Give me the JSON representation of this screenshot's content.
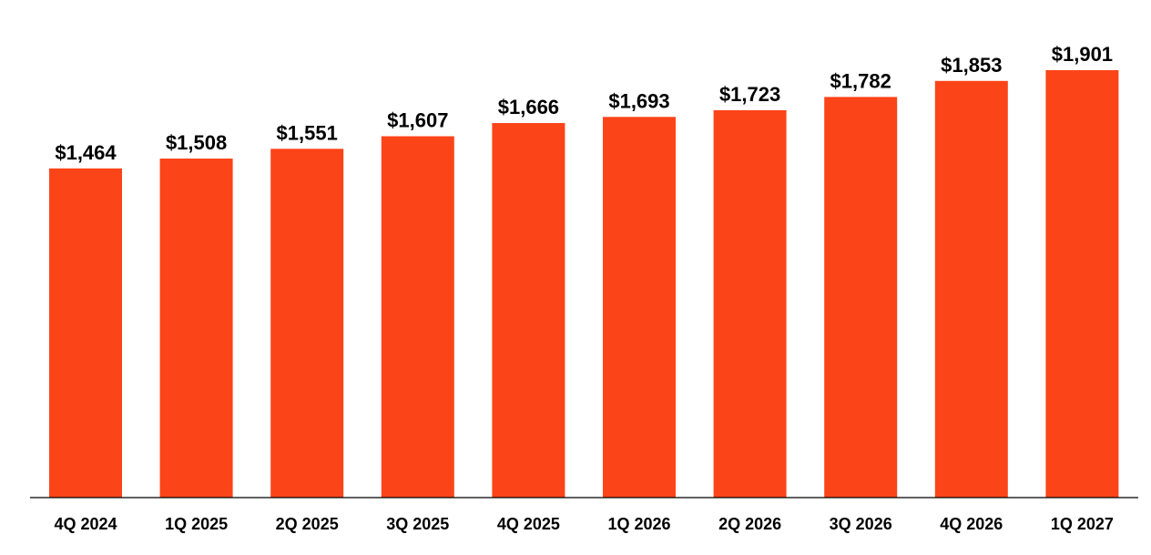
{
  "colors": {
    "bar": "#FC4419",
    "axis": "#000000",
    "text": "#000000",
    "background": "#FFFFFF"
  },
  "chart_data": {
    "type": "bar",
    "title": "",
    "xlabel": "",
    "ylabel": "",
    "categories": [
      "4Q 2024",
      "1Q 2025",
      "2Q 2025",
      "3Q 2025",
      "4Q 2025",
      "1Q 2026",
      "2Q 2026",
      "3Q 2026",
      "4Q 2026",
      "1Q 2027"
    ],
    "values": [
      1464,
      1508,
      1551,
      1607,
      1666,
      1693,
      1723,
      1782,
      1853,
      1901
    ],
    "data_labels": [
      "$1,464",
      "$1,508",
      "$1,551",
      "$1,607",
      "$1,666",
      "$1,693",
      "$1,723",
      "$1,782",
      "$1,853",
      "$1,901"
    ],
    "ylim": [
      0,
      1901
    ],
    "grid": false,
    "legend": "none"
  }
}
